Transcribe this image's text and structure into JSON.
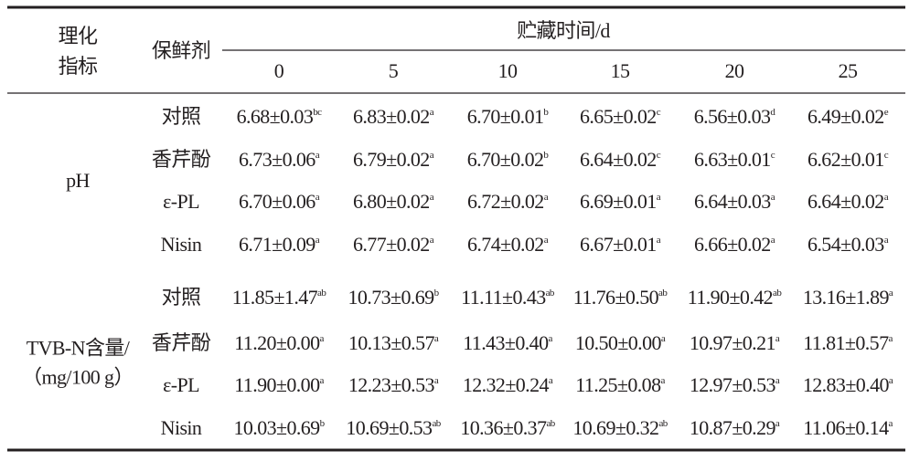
{
  "table": {
    "header": {
      "group_label": [
        "理化",
        "指标"
      ],
      "preservative_label": "保鲜剂",
      "time_label": "贮藏时间/d",
      "days": [
        "0",
        "5",
        "10",
        "15",
        "20",
        "25"
      ]
    },
    "groups": [
      {
        "label": [
          "pH"
        ],
        "rows": [
          {
            "preservative": "对照",
            "cells": [
              {
                "value": "6.68±0.03",
                "sup": "bc"
              },
              {
                "value": "6.83±0.02",
                "sup": "a"
              },
              {
                "value": "6.70±0.01",
                "sup": "b"
              },
              {
                "value": "6.65±0.02",
                "sup": "c"
              },
              {
                "value": "6.56±0.03",
                "sup": "d"
              },
              {
                "value": "6.49±0.02",
                "sup": "e"
              }
            ]
          },
          {
            "preservative": "香芹酚",
            "cells": [
              {
                "value": "6.73±0.06",
                "sup": "a"
              },
              {
                "value": "6.79±0.02",
                "sup": "a"
              },
              {
                "value": "6.70±0.02",
                "sup": "b"
              },
              {
                "value": "6.64±0.02",
                "sup": "c"
              },
              {
                "value": "6.63±0.01",
                "sup": "c"
              },
              {
                "value": "6.62±0.01",
                "sup": "c"
              }
            ]
          },
          {
            "preservative": "ε-PL",
            "cells": [
              {
                "value": "6.70±0.06",
                "sup": "a"
              },
              {
                "value": "6.80±0.02",
                "sup": "a"
              },
              {
                "value": "6.72±0.02",
                "sup": "a"
              },
              {
                "value": "6.69±0.01",
                "sup": "a"
              },
              {
                "value": "6.64±0.03",
                "sup": "a"
              },
              {
                "value": "6.64±0.02",
                "sup": "a"
              }
            ]
          },
          {
            "preservative": "Nisin",
            "cells": [
              {
                "value": "6.71±0.09",
                "sup": "a"
              },
              {
                "value": "6.77±0.02",
                "sup": "a"
              },
              {
                "value": "6.74±0.02",
                "sup": "a"
              },
              {
                "value": "6.67±0.01",
                "sup": "a"
              },
              {
                "value": "6.66±0.02",
                "sup": "a"
              },
              {
                "value": "6.54±0.03",
                "sup": "a"
              }
            ]
          }
        ]
      },
      {
        "label": [
          "TVB-N含量/",
          "（mg/100 g）"
        ],
        "rows": [
          {
            "preservative": "对照",
            "cells": [
              {
                "value": "11.85±1.47",
                "sup": "ab"
              },
              {
                "value": "10.73±0.69",
                "sup": "b"
              },
              {
                "value": "11.11±0.43",
                "sup": "ab"
              },
              {
                "value": "11.76±0.50",
                "sup": "ab"
              },
              {
                "value": "11.90±0.42",
                "sup": "ab"
              },
              {
                "value": "13.16±1.89",
                "sup": "a"
              }
            ]
          },
          {
            "preservative": "香芹酚",
            "cells": [
              {
                "value": "11.20±0.00",
                "sup": "a"
              },
              {
                "value": "10.13±0.57",
                "sup": "a"
              },
              {
                "value": "11.43±0.40",
                "sup": "a"
              },
              {
                "value": "10.50±0.00",
                "sup": "a"
              },
              {
                "value": "10.97±0.21",
                "sup": "a"
              },
              {
                "value": "11.81±0.57",
                "sup": "a"
              }
            ]
          },
          {
            "preservative": "ε-PL",
            "cells": [
              {
                "value": "11.90±0.00",
                "sup": "a"
              },
              {
                "value": "12.23±0.53",
                "sup": "a"
              },
              {
                "value": "12.32±0.24",
                "sup": "a"
              },
              {
                "value": "11.25±0.08",
                "sup": "a"
              },
              {
                "value": "12.97±0.53",
                "sup": "a"
              },
              {
                "value": "12.83±0.40",
                "sup": "a"
              }
            ]
          },
          {
            "preservative": "Nisin",
            "cells": [
              {
                "value": "10.03±0.69",
                "sup": "b"
              },
              {
                "value": "10.69±0.53",
                "sup": "ab"
              },
              {
                "value": "10.36±0.37",
                "sup": "ab"
              },
              {
                "value": "10.69±0.32",
                "sup": "ab"
              },
              {
                "value": "10.87±0.29",
                "sup": "a"
              },
              {
                "value": "11.06±0.14",
                "sup": "a"
              }
            ]
          }
        ]
      }
    ]
  }
}
